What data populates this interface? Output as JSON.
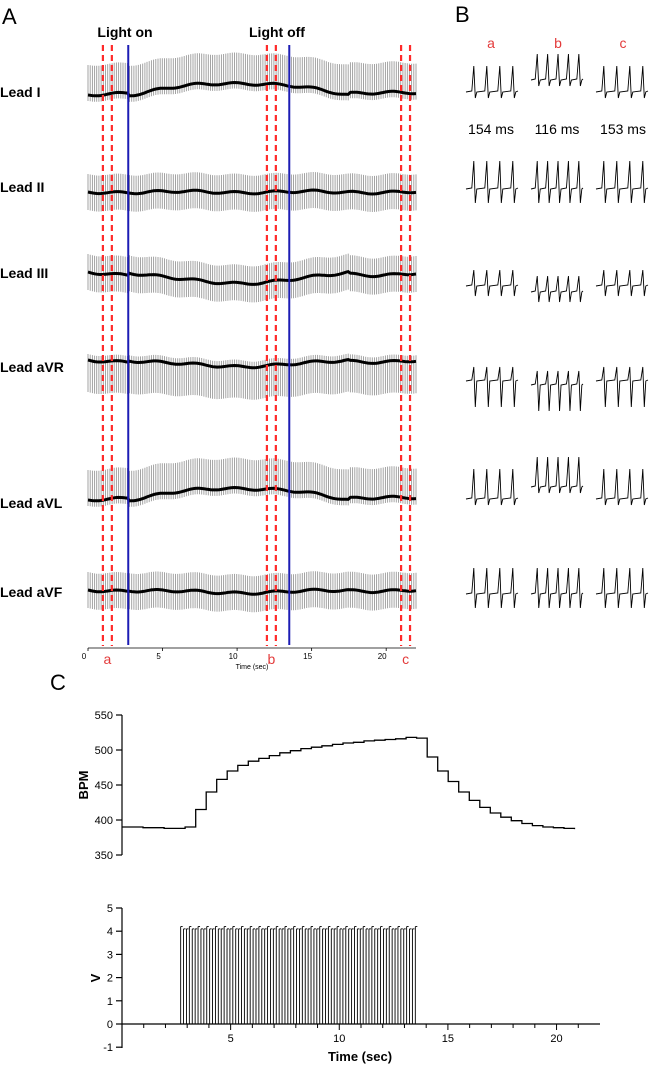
{
  "panels": {
    "a": "A",
    "b": "B",
    "c": "C"
  },
  "colors": {
    "trace": "#000000",
    "trace_envelope": "#9a9a9a",
    "light_marker": "#1c1cb4",
    "window_marker": "#ff2a2a",
    "window_label": "#e33b3b"
  },
  "chart_data": [
    {
      "id": "ecg_leads",
      "type": "line",
      "events": [
        {
          "label": "Light on",
          "time": 2.7
        },
        {
          "label": "Light off",
          "time": 13.5
        }
      ],
      "x": {
        "label": "Time (sec)",
        "ticks": [
          0,
          5,
          10,
          15,
          20
        ],
        "lim": [
          0,
          22
        ]
      },
      "windows": [
        {
          "label": "a",
          "start": 1.0,
          "end": 1.6
        },
        {
          "label": "b",
          "start": 12.0,
          "end": 12.6
        },
        {
          "label": "c",
          "start": 21.0,
          "end": 21.6
        }
      ],
      "series": [
        {
          "name": "Lead I",
          "baseline_shift": -1.0,
          "deflection": "up"
        },
        {
          "name": "Lead II",
          "baseline_shift": 0.0,
          "deflection": "both"
        },
        {
          "name": "Lead III",
          "baseline_shift": 0.9,
          "deflection": "both"
        },
        {
          "name": "Lead aVR",
          "baseline_shift": 0.5,
          "deflection": "down"
        },
        {
          "name": "Lead aVL",
          "baseline_shift": -1.0,
          "deflection": "up"
        },
        {
          "name": "Lead aVF",
          "baseline_shift": 0.2,
          "deflection": "both"
        }
      ]
    },
    {
      "id": "ecg_windows",
      "type": "line",
      "columns": [
        "a",
        "b",
        "c"
      ],
      "rr_intervals": [
        {
          "window": "a",
          "label": "154 ms",
          "value": 154
        },
        {
          "window": "b",
          "label": "116 ms",
          "value": 116
        },
        {
          "window": "c",
          "label": "153 ms",
          "value": 153
        }
      ],
      "beats_per_window": [
        4,
        5,
        4
      ]
    },
    {
      "id": "heart_rate",
      "type": "line",
      "ylabel": "BPM",
      "ylim": [
        350,
        550
      ],
      "yticks": [
        350,
        400,
        450,
        500,
        550
      ],
      "xlim": [
        0,
        22
      ],
      "x": [
        0,
        1,
        2,
        3,
        3.5,
        4,
        4.5,
        5,
        5.5,
        6,
        6.5,
        7,
        7.5,
        8,
        8.5,
        9,
        9.5,
        10,
        10.5,
        11,
        11.5,
        12,
        12.5,
        13,
        13.5,
        14,
        14.5,
        15,
        15.5,
        16,
        16.5,
        17,
        17.5,
        18,
        18.5,
        19,
        19.5,
        20,
        20.5,
        21,
        21.5
      ],
      "y": [
        390,
        389,
        388,
        390,
        415,
        440,
        458,
        470,
        478,
        484,
        488,
        492,
        496,
        499,
        502,
        504,
        506,
        508,
        510,
        511,
        513,
        514,
        515,
        516,
        518,
        517,
        490,
        470,
        455,
        440,
        428,
        418,
        410,
        404,
        399,
        395,
        392,
        390,
        389,
        388,
        387
      ]
    },
    {
      "id": "light_pulses",
      "type": "bar",
      "ylabel": "V",
      "xlabel": "Time (sec)",
      "ylim": [
        -1,
        5
      ],
      "yticks": [
        -1,
        0,
        1,
        2,
        3,
        4,
        5
      ],
      "xticks": [
        5,
        10,
        15,
        20
      ],
      "xlim": [
        0,
        22
      ],
      "pulse_start": 2.7,
      "pulse_end": 13.5,
      "pulse_amplitude": 4.1,
      "pulse_count": 82
    }
  ]
}
